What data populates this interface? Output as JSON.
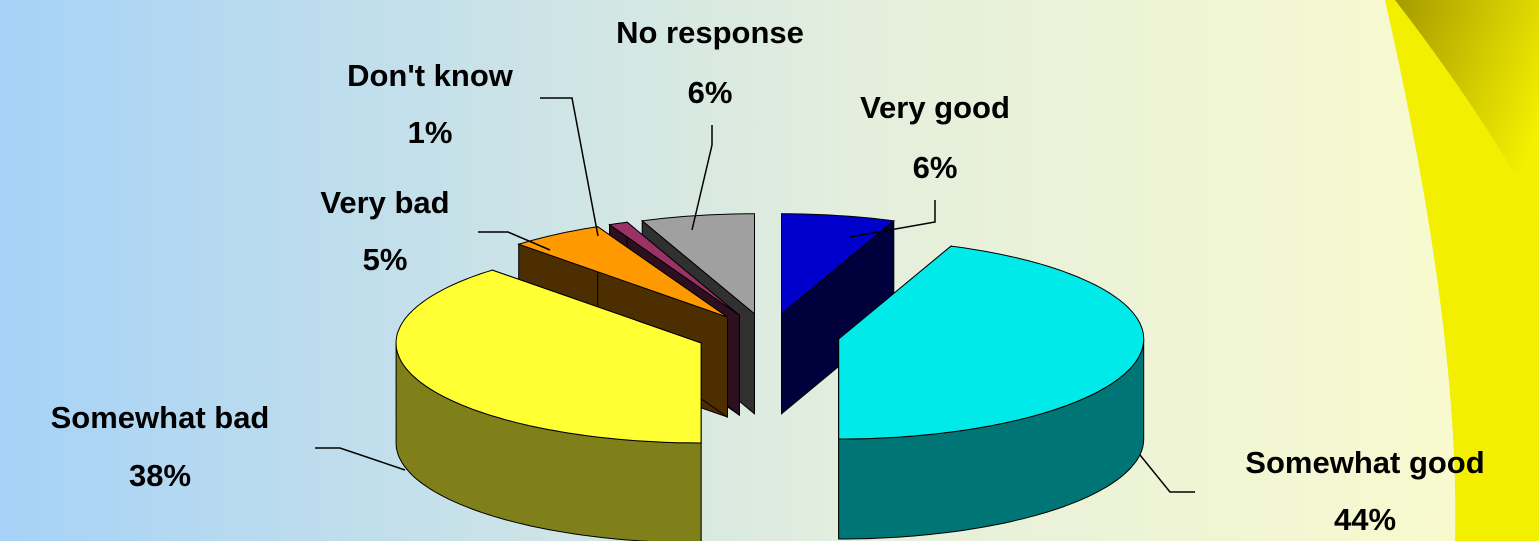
{
  "chart_data": {
    "type": "pie3d",
    "categories": [
      "Very good",
      "Somewhat good",
      "Somewhat bad",
      "Very bad",
      "Don't know",
      "No response"
    ],
    "values": [
      6,
      44,
      38,
      5,
      1,
      6
    ],
    "value_labels": [
      "6%",
      "44%",
      "38%",
      "5%",
      "1%",
      "6%"
    ],
    "colors": [
      "#0000cc",
      "#00eaea",
      "#ffff33",
      "#ff9900",
      "#993366",
      "#a0a0a0"
    ]
  }
}
